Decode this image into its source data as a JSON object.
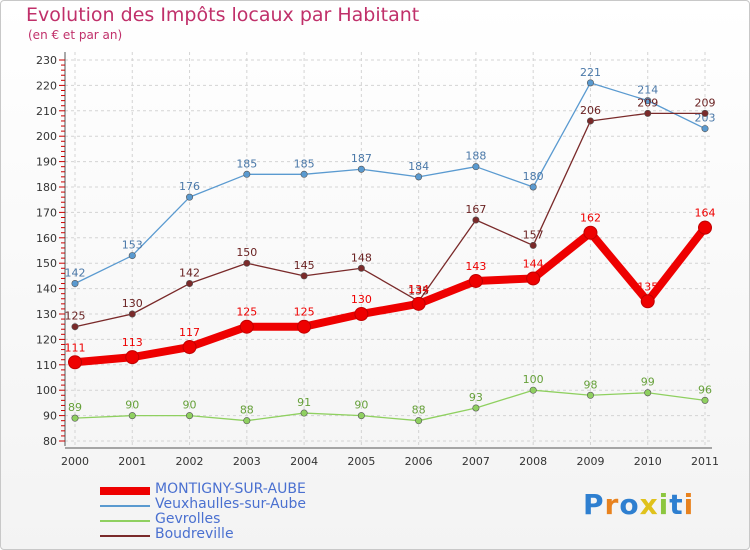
{
  "title": "Evolution des Impôts locaux par Habitant",
  "subtitle": "(en € et par an)",
  "logo": {
    "letters": [
      "P",
      "r",
      "o",
      "x",
      "i",
      "t",
      "i"
    ],
    "colors": [
      "#2e7fd0",
      "#e8821e",
      "#2e7fd0",
      "#e0c21c",
      "#8cc63f",
      "#2e7fd0",
      "#e8821e"
    ]
  },
  "chart_data": {
    "type": "line",
    "title": "Evolution des Impôts locaux par Habitant",
    "subtitle": "(en € et par an)",
    "categories": [
      "2000",
      "2001",
      "2002",
      "2003",
      "2004",
      "2005",
      "2006",
      "2007",
      "2008",
      "2009",
      "2010",
      "2011"
    ],
    "ylim": [
      80,
      230
    ],
    "yticks": [
      80,
      90,
      100,
      110,
      120,
      130,
      140,
      150,
      160,
      170,
      180,
      190,
      200,
      210,
      220,
      230
    ],
    "grid": true,
    "legend_position": "bottom-left",
    "series": [
      {
        "name": "MONTIGNY-SUR-AUBE",
        "color": "#ee0000",
        "label_color": "#ee0000",
        "values": [
          111,
          113,
          117,
          125,
          125,
          130,
          134,
          143,
          144,
          162,
          135,
          164
        ]
      },
      {
        "name": "Veuxhaulles-sur-Aube",
        "color": "#5a9ad0",
        "label_color": "#4a78a8",
        "values": [
          142,
          153,
          176,
          185,
          185,
          187,
          184,
          188,
          180,
          221,
          214,
          203
        ]
      },
      {
        "name": "Gevrolles",
        "color": "#8fd060",
        "label_color": "#66a03a",
        "values": [
          89,
          90,
          90,
          88,
          91,
          90,
          88,
          93,
          100,
          98,
          99,
          96
        ]
      },
      {
        "name": "Boudreville",
        "color": "#7a2a2a",
        "label_color": "#6a2222",
        "values": [
          125,
          130,
          142,
          150,
          145,
          148,
          135,
          167,
          157,
          206,
          209,
          209
        ]
      }
    ]
  }
}
